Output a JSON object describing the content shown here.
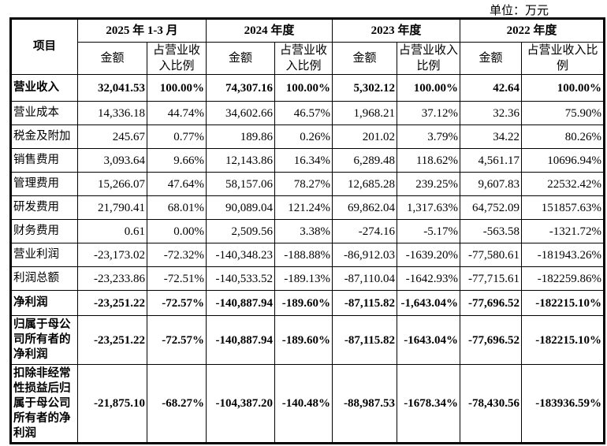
{
  "unit": "单位：万元",
  "header": {
    "item": "项目",
    "periods": [
      "2025 年 1-3 月",
      "2024 年度",
      "2023 年度",
      "2022 年度"
    ],
    "amount": "金额",
    "ratios": [
      "占营业收入比例",
      "占营业收入比例",
      "占营业收入比例",
      "占营业收入比例"
    ]
  },
  "rows": [
    {
      "label": "营业收入",
      "bold": true,
      "values": [
        "32,041.53",
        "100.00%",
        "74,307.16",
        "100.00%",
        "5,302.12",
        "100.00%",
        "42.64",
        "100.00%"
      ]
    },
    {
      "label": "营业成本",
      "values": [
        "14,336.18",
        "44.74%",
        "34,602.66",
        "46.57%",
        "1,968.21",
        "37.12%",
        "32.36",
        "75.90%"
      ]
    },
    {
      "label": "税金及附加",
      "values": [
        "245.67",
        "0.77%",
        "189.86",
        "0.26%",
        "201.02",
        "3.79%",
        "34.22",
        "80.26%"
      ]
    },
    {
      "label": "销售费用",
      "values": [
        "3,093.64",
        "9.66%",
        "12,143.86",
        "16.34%",
        "6,289.48",
        "118.62%",
        "4,561.17",
        "10696.94%"
      ]
    },
    {
      "label": "管理费用",
      "values": [
        "15,266.07",
        "47.64%",
        "58,157.06",
        "78.27%",
        "12,685.28",
        "239.25%",
        "9,607.83",
        "22532.42%"
      ]
    },
    {
      "label": "研发费用",
      "values": [
        "21,790.41",
        "68.01%",
        "90,089.04",
        "121.24%",
        "69,862.04",
        "1,317.63%",
        "64,752.09",
        "151857.63%"
      ]
    },
    {
      "label": "财务费用",
      "values": [
        "0.61",
        "0.00%",
        "2,509.56",
        "3.38%",
        "-274.16",
        "-5.17%",
        "-563.58",
        "-1321.72%"
      ]
    },
    {
      "label": "营业利润",
      "values": [
        "-23,173.02",
        "-72.32%",
        "-140,348.23",
        "-188.88%",
        "-86,912.03",
        "-1639.20%",
        "-77,580.61",
        "-181943.26%"
      ]
    },
    {
      "label": "利润总额",
      "values": [
        "-23,233.86",
        "-72.51%",
        "-140,533.52",
        "-189.13%",
        "-87,110.04",
        "-1642.93%",
        "-77,715.61",
        "-182259.86%"
      ]
    },
    {
      "label": "净利润",
      "bold": true,
      "values": [
        "-23,251.22",
        "-72.57%",
        "-140,887.94",
        "-189.60%",
        "-87,115.82",
        "-1,643.04%",
        "-77,696.52",
        "-182215.10%"
      ]
    },
    {
      "label": "归属于母公司所有者的净利润",
      "bold": true,
      "values": [
        "-23,251.22",
        "-72.57%",
        "-140,887.94",
        "-189.60%",
        "-87,115.82",
        "-1643.04%",
        "-77,696.52",
        "-182215.10%"
      ]
    },
    {
      "label": "扣除非经常性损益后归属于母公司所有者的净利润",
      "bold": true,
      "values": [
        "-21,875.10",
        "-68.27%",
        "-104,387.20",
        "-140.48%",
        "-88,987.53",
        "-1678.34%",
        "-78,430.56",
        "-183936.59%"
      ]
    }
  ]
}
